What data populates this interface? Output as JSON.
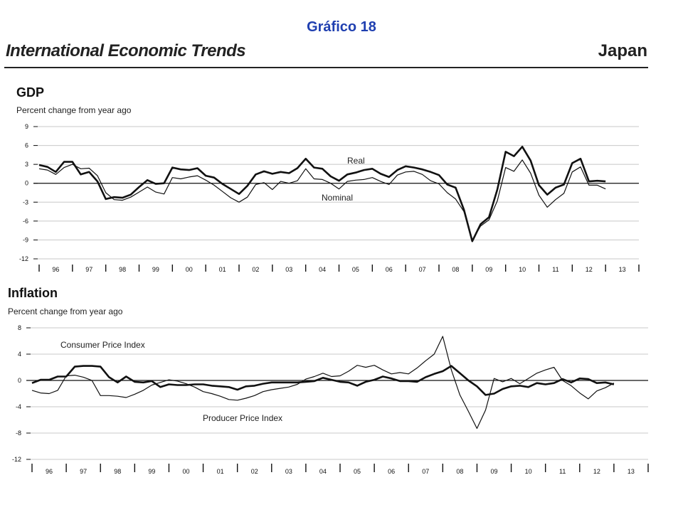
{
  "slide_title": "Gráfico 18",
  "report_title": "International Economic Trends",
  "country": "Japan",
  "chart_data": [
    {
      "type": "line",
      "title": "GDP",
      "subtitle": "Percent change from year ago",
      "yticks": [
        "9",
        "6",
        "3",
        "0",
        "-3",
        "-6",
        "-9",
        "-12"
      ],
      "ylim": [
        -12,
        9
      ],
      "xlim": [
        1996,
        2014
      ],
      "year_labels": [
        "96",
        "97",
        "98",
        "99",
        "00",
        "01",
        "02",
        "03",
        "04",
        "05",
        "06",
        "07",
        "08",
        "09",
        "10",
        "11",
        "12",
        "13"
      ],
      "grid": true,
      "annotations": [
        "Real",
        "Nominal"
      ],
      "series": [
        {
          "name": "Real",
          "x": [
            1996.0,
            1996.25,
            1996.5,
            1996.75,
            1997.0,
            1997.25,
            1997.5,
            1997.75,
            1998.0,
            1998.25,
            1998.5,
            1998.75,
            1999.0,
            1999.25,
            1999.5,
            1999.75,
            2000.0,
            2000.25,
            2000.5,
            2000.75,
            2001.0,
            2001.25,
            2001.5,
            2001.75,
            2002.0,
            2002.25,
            2002.5,
            2002.75,
            2003.0,
            2003.25,
            2003.5,
            2003.75,
            2004.0,
            2004.25,
            2004.5,
            2004.75,
            2005.0,
            2005.25,
            2005.5,
            2005.75,
            2006.0,
            2006.25,
            2006.5,
            2006.75,
            2007.0,
            2007.25,
            2007.5,
            2007.75,
            2008.0,
            2008.25,
            2008.5,
            2008.75,
            2009.0,
            2009.25,
            2009.5,
            2009.75,
            2010.0,
            2010.25,
            2010.5,
            2010.75,
            2011.0,
            2011.25,
            2011.5,
            2011.75,
            2012.0,
            2012.25,
            2012.5,
            2012.75,
            2013.0
          ],
          "values": [
            2.9,
            2.6,
            1.8,
            3.4,
            3.4,
            1.4,
            1.8,
            0.3,
            -2.5,
            -2.2,
            -2.3,
            -1.8,
            -0.6,
            0.5,
            -0.1,
            0.0,
            2.5,
            2.2,
            2.1,
            2.4,
            1.2,
            0.9,
            -0.1,
            -0.9,
            -1.7,
            -0.4,
            1.4,
            1.9,
            1.5,
            1.8,
            1.6,
            2.4,
            3.9,
            2.5,
            2.3,
            1.1,
            0.4,
            1.4,
            1.7,
            2.1,
            2.3,
            1.5,
            1.0,
            2.1,
            2.7,
            2.5,
            2.2,
            1.8,
            1.3,
            -0.2,
            -0.7,
            -4.2,
            -9.2,
            -6.5,
            -5.4,
            -1.0,
            5.0,
            4.3,
            5.8,
            3.6,
            -0.3,
            -1.8,
            -0.7,
            -0.2,
            3.2,
            3.9,
            0.3,
            0.4,
            0.3
          ]
        },
        {
          "name": "Nominal",
          "x": [
            1996.0,
            1996.25,
            1996.5,
            1996.75,
            1997.0,
            1997.25,
            1997.5,
            1997.75,
            1998.0,
            1998.25,
            1998.5,
            1998.75,
            1999.0,
            1999.25,
            1999.5,
            1999.75,
            2000.0,
            2000.25,
            2000.5,
            2000.75,
            2001.0,
            2001.25,
            2001.5,
            2001.75,
            2002.0,
            2002.25,
            2002.5,
            2002.75,
            2003.0,
            2003.25,
            2003.5,
            2003.75,
            2004.0,
            2004.25,
            2004.5,
            2004.75,
            2005.0,
            2005.25,
            2005.5,
            2005.75,
            2006.0,
            2006.25,
            2006.5,
            2006.75,
            2007.0,
            2007.25,
            2007.5,
            2007.75,
            2008.0,
            2008.25,
            2008.5,
            2008.75,
            2009.0,
            2009.25,
            2009.5,
            2009.75,
            2010.0,
            2010.25,
            2010.5,
            2010.75,
            2011.0,
            2011.25,
            2011.5,
            2011.75,
            2012.0,
            2012.25,
            2012.5,
            2012.75,
            2013.0
          ],
          "values": [
            2.3,
            2.1,
            1.4,
            2.5,
            3.0,
            2.3,
            2.4,
            1.2,
            -1.5,
            -2.6,
            -2.7,
            -2.2,
            -1.4,
            -0.6,
            -1.4,
            -1.7,
            0.9,
            0.7,
            1.0,
            1.2,
            0.5,
            -0.3,
            -1.3,
            -2.3,
            -3.0,
            -2.2,
            -0.2,
            0.1,
            -1.0,
            0.3,
            0.0,
            0.4,
            2.3,
            0.7,
            0.6,
            0.0,
            -0.9,
            0.3,
            0.5,
            0.6,
            0.9,
            0.3,
            -0.2,
            1.3,
            1.8,
            1.9,
            1.4,
            0.4,
            -0.1,
            -1.5,
            -2.5,
            -4.5,
            -9.0,
            -6.8,
            -5.8,
            -2.8,
            2.5,
            1.9,
            3.7,
            1.6,
            -1.9,
            -3.8,
            -2.6,
            -1.6,
            1.8,
            2.6,
            -0.3,
            -0.3,
            -0.9
          ]
        }
      ]
    },
    {
      "type": "line",
      "title": "Inflation",
      "subtitle": "Percent change from year ago",
      "yticks": [
        "8",
        "4",
        "0",
        "-4",
        "-8",
        "-12"
      ],
      "ylim": [
        -12,
        8
      ],
      "xlim": [
        1996,
        2014
      ],
      "year_labels": [
        "96",
        "97",
        "98",
        "99",
        "00",
        "01",
        "02",
        "03",
        "04",
        "05",
        "06",
        "07",
        "08",
        "09",
        "10",
        "11",
        "12",
        "13"
      ],
      "grid": true,
      "annotations": [
        "Consumer Price Index",
        "Producer Price Index"
      ],
      "series": [
        {
          "name": "Consumer Price Index",
          "x": [
            1996.0,
            1996.25,
            1996.5,
            1996.75,
            1997.0,
            1997.25,
            1997.5,
            1997.75,
            1998.0,
            1998.25,
            1998.5,
            1998.75,
            1999.0,
            1999.25,
            1999.5,
            1999.75,
            2000.0,
            2000.25,
            2000.5,
            2000.75,
            2001.0,
            2001.25,
            2001.5,
            2001.75,
            2002.0,
            2002.25,
            2002.5,
            2002.75,
            2003.0,
            2003.25,
            2003.5,
            2003.75,
            2004.0,
            2004.25,
            2004.5,
            2004.75,
            2005.0,
            2005.25,
            2005.5,
            2005.75,
            2006.0,
            2006.25,
            2006.5,
            2006.75,
            2007.0,
            2007.25,
            2007.5,
            2007.75,
            2008.0,
            2008.25,
            2008.5,
            2008.75,
            2009.0,
            2009.25,
            2009.5,
            2009.75,
            2010.0,
            2010.25,
            2010.5,
            2010.75,
            2011.0,
            2011.25,
            2011.5,
            2011.75,
            2012.0,
            2012.25,
            2012.5,
            2012.75,
            2013.0
          ],
          "values": [
            -0.4,
            0.1,
            0.1,
            0.6,
            0.6,
            2.1,
            2.2,
            2.2,
            2.1,
            0.5,
            -0.3,
            0.6,
            -0.2,
            -0.3,
            -0.1,
            -1.0,
            -0.6,
            -0.7,
            -0.7,
            -0.6,
            -0.6,
            -0.8,
            -0.9,
            -1.0,
            -1.4,
            -0.9,
            -0.8,
            -0.5,
            -0.3,
            -0.3,
            -0.3,
            -0.3,
            -0.2,
            -0.1,
            0.4,
            0.1,
            -0.2,
            -0.3,
            -0.8,
            -0.2,
            0.1,
            0.6,
            0.3,
            -0.1,
            -0.1,
            -0.2,
            0.5,
            1.0,
            1.4,
            2.2,
            1.1,
            0.0,
            -0.9,
            -2.2,
            -2.0,
            -1.3,
            -0.9,
            -0.8,
            -1.0,
            -0.4,
            -0.6,
            -0.4,
            0.2,
            -0.3,
            0.3,
            0.2,
            -0.4,
            -0.3,
            -0.6
          ]
        },
        {
          "name": "Producer Price Index",
          "x": [
            1996.0,
            1996.25,
            1996.5,
            1996.75,
            1997.0,
            1997.25,
            1997.5,
            1997.75,
            1998.0,
            1998.25,
            1998.5,
            1998.75,
            1999.0,
            1999.25,
            1999.5,
            1999.75,
            2000.0,
            2000.25,
            2000.5,
            2000.75,
            2001.0,
            2001.25,
            2001.5,
            2001.75,
            2002.0,
            2002.25,
            2002.5,
            2002.75,
            2003.0,
            2003.25,
            2003.5,
            2003.75,
            2004.0,
            2004.25,
            2004.5,
            2004.75,
            2005.0,
            2005.25,
            2005.5,
            2005.75,
            2006.0,
            2006.25,
            2006.5,
            2006.75,
            2007.0,
            2007.25,
            2007.5,
            2007.75,
            2008.0,
            2008.25,
            2008.5,
            2008.75,
            2009.0,
            2009.25,
            2009.5,
            2009.75,
            2010.0,
            2010.25,
            2010.5,
            2010.75,
            2011.0,
            2011.25,
            2011.5,
            2011.75,
            2012.0,
            2012.25,
            2012.5,
            2012.75,
            2013.0
          ],
          "values": [
            -1.5,
            -1.9,
            -2.0,
            -1.5,
            0.7,
            0.8,
            0.5,
            0.0,
            -2.3,
            -2.3,
            -2.4,
            -2.6,
            -2.1,
            -1.5,
            -0.7,
            -0.3,
            0.1,
            -0.1,
            -0.5,
            -1.0,
            -1.7,
            -2.0,
            -2.4,
            -2.9,
            -3.0,
            -2.7,
            -2.3,
            -1.7,
            -1.4,
            -1.2,
            -1.0,
            -0.6,
            0.2,
            0.6,
            1.1,
            0.6,
            0.7,
            1.4,
            2.3,
            2.0,
            2.3,
            1.6,
            1.0,
            1.2,
            1.0,
            1.9,
            3.0,
            4.0,
            6.7,
            1.6,
            -2.2,
            -4.7,
            -7.3,
            -4.5,
            0.3,
            -0.2,
            0.3,
            -0.5,
            0.3,
            1.1,
            1.6,
            2.0,
            0.0,
            -0.8,
            -1.9,
            -2.8,
            -1.6,
            -1.1,
            -0.4
          ]
        }
      ]
    }
  ]
}
